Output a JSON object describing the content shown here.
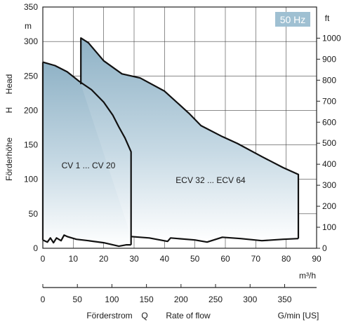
{
  "chart_data": {
    "type": "area",
    "title": "",
    "badge": "50 Hz",
    "left_axis": {
      "labels": [
        "Förderhöhe",
        "H",
        "Head"
      ],
      "unit": "m",
      "ticks": [
        0,
        50,
        100,
        150,
        200,
        250,
        300,
        350
      ],
      "ylim": [
        0,
        350
      ]
    },
    "right_axis": {
      "unit": "ft",
      "ticks": [
        0,
        100,
        200,
        300,
        400,
        500,
        600,
        700,
        800,
        900,
        1000
      ]
    },
    "bottom_axis_m3h": {
      "unit": "m³/h",
      "ticks": [
        0,
        10,
        20,
        30,
        40,
        50,
        60,
        70,
        80,
        90
      ],
      "xlim": [
        0,
        90
      ]
    },
    "bottom_axis_gpm": {
      "ticks": [
        0,
        50,
        100,
        150,
        200,
        250,
        300,
        350
      ],
      "labels": [
        "Förderstrom",
        "Q",
        "Rate of flow"
      ],
      "unit": "G/min [US]"
    },
    "grid": true,
    "series": [
      {
        "name": "CV 1 ... CV 20",
        "upper": [
          [
            0,
            270
          ],
          [
            4,
            265
          ],
          [
            8,
            256
          ],
          [
            12,
            242
          ],
          [
            16,
            230
          ],
          [
            20,
            212
          ],
          [
            23,
            193
          ],
          [
            25,
            176
          ],
          [
            27,
            160
          ],
          [
            29,
            140
          ]
        ],
        "lower": [
          [
            0,
            12
          ],
          [
            1.5,
            9
          ],
          [
            2.5,
            15
          ],
          [
            3.5,
            8
          ],
          [
            4.5,
            15
          ],
          [
            6,
            11
          ],
          [
            7,
            19
          ],
          [
            8,
            17
          ],
          [
            11,
            13
          ],
          [
            15,
            11
          ],
          [
            20,
            8
          ],
          [
            24,
            4
          ],
          [
            25,
            3
          ],
          [
            27.5,
            5
          ],
          [
            29,
            5
          ]
        ]
      },
      {
        "name": "ECV 32 ... ECV 64",
        "upper": [
          [
            12.5,
            238
          ],
          [
            12.5,
            305
          ],
          [
            15,
            298
          ],
          [
            20,
            272
          ],
          [
            26,
            253
          ],
          [
            32,
            247
          ],
          [
            40,
            228
          ],
          [
            48,
            196
          ],
          [
            52,
            178
          ],
          [
            59,
            162
          ],
          [
            64,
            152
          ],
          [
            72,
            133
          ],
          [
            79,
            117
          ],
          [
            84,
            107
          ]
        ],
        "lower": [
          [
            29,
            17
          ],
          [
            35,
            15
          ],
          [
            41,
            10
          ],
          [
            42,
            15
          ],
          [
            50,
            12
          ],
          [
            54,
            9
          ],
          [
            59,
            16
          ],
          [
            65,
            14
          ],
          [
            72,
            11
          ],
          [
            79,
            13
          ],
          [
            84,
            14
          ]
        ]
      }
    ]
  }
}
